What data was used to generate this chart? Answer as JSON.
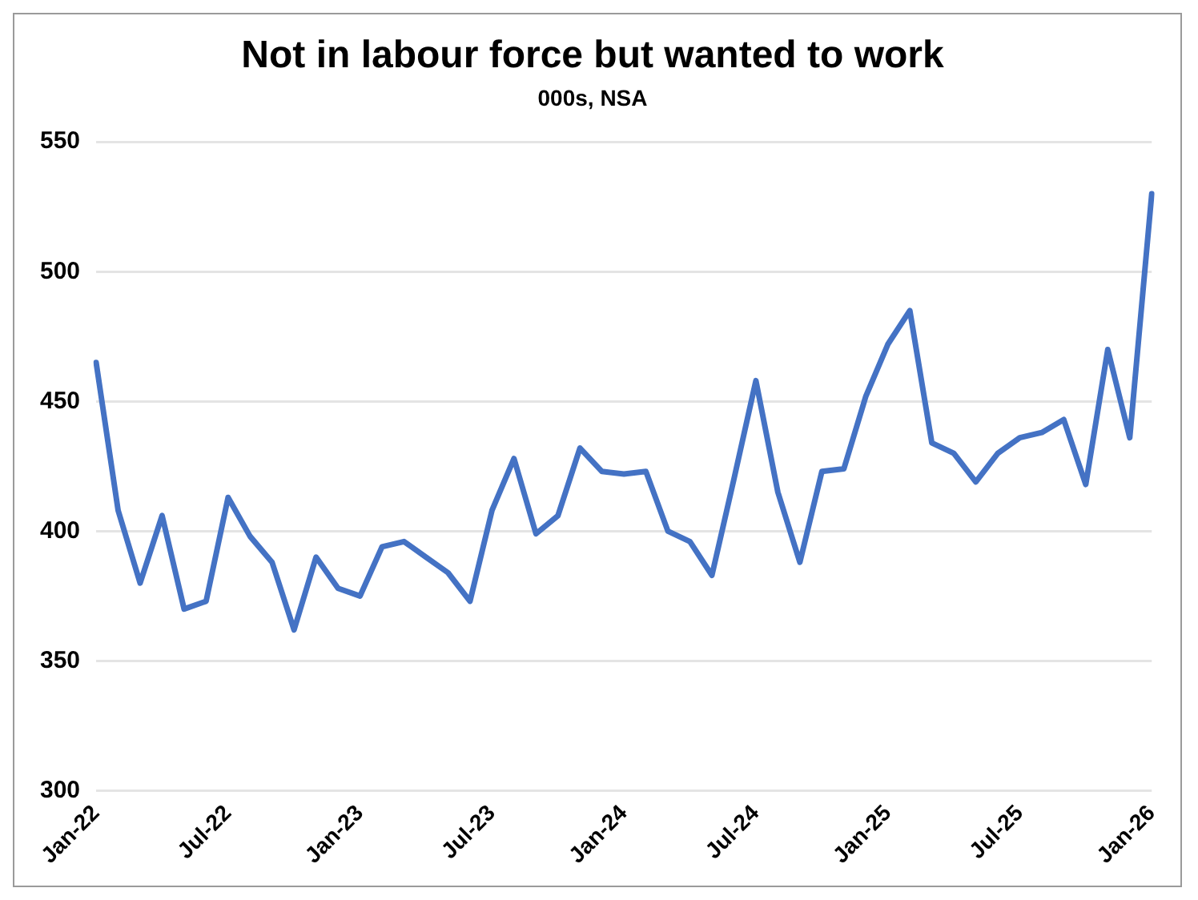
{
  "chart_data": {
    "type": "line",
    "title": "Not in labour force but wanted to work",
    "subtitle": "000s, NSA",
    "categories": [
      "Jan-22",
      null,
      null,
      null,
      null,
      null,
      "Jul-22",
      null,
      null,
      null,
      null,
      null,
      "Jan-23",
      null,
      null,
      null,
      null,
      null,
      "Jul-23",
      null,
      null,
      null,
      null,
      null,
      "Jan-24",
      null,
      null,
      null,
      null,
      null,
      "Jul-24",
      null,
      null,
      null,
      null,
      null,
      "Jan-25",
      null,
      null,
      null,
      null,
      null,
      "Jul-25",
      null,
      null,
      null,
      null,
      null,
      "Jan-26"
    ],
    "series": [
      {
        "color": "#4472c4",
        "values": [
          465,
          408,
          380,
          406,
          370,
          373,
          413,
          398,
          388,
          362,
          390,
          378,
          375,
          394,
          396,
          390,
          384,
          373,
          408,
          428,
          399,
          406,
          432,
          423,
          422,
          423,
          400,
          396,
          383,
          420,
          458,
          415,
          388,
          423,
          424,
          452,
          472,
          485,
          434,
          430,
          419,
          430,
          436,
          438,
          443,
          418,
          470,
          436,
          530
        ]
      }
    ],
    "ylim": [
      300,
      550
    ],
    "yticks": [
      300,
      350,
      400,
      450,
      500,
      550
    ],
    "grid": "y",
    "legend": false,
    "marker": "none",
    "line_style": "solid"
  }
}
